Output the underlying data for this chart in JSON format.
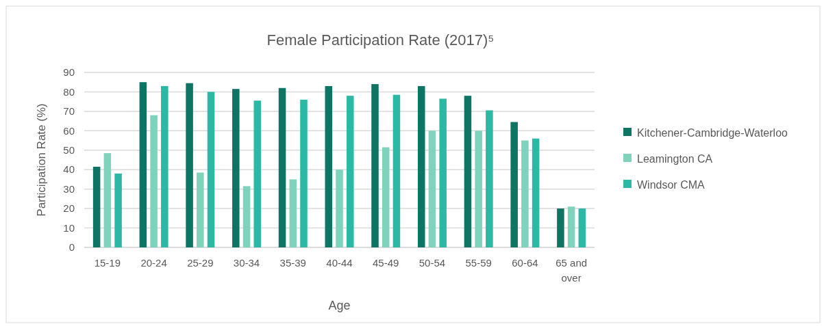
{
  "chart_data": {
    "type": "bar",
    "title": "Female Participation Rate (2017)⁵",
    "xlabel": "Age",
    "ylabel": "Participation Rate (%)",
    "categories": [
      "15-19",
      "20-24",
      "25-29",
      "30-34",
      "35-39",
      "40-44",
      "45-49",
      "50-54",
      "55-59",
      "60-64",
      "65 and over"
    ],
    "series": [
      {
        "name": "Kitchener-Cambridge-Waterloo",
        "color": "#0e7463",
        "values": [
          41.5,
          85,
          84.5,
          81.5,
          82,
          83,
          84,
          83,
          78,
          64.5,
          20
        ]
      },
      {
        "name": "Leamington CA",
        "color": "#7fd3bc",
        "values": [
          48.5,
          68,
          38.5,
          31.5,
          35,
          40,
          51.5,
          60,
          60,
          55,
          21
        ]
      },
      {
        "name": "Windsor CMA",
        "color": "#2bb8a4",
        "values": [
          38,
          83,
          80,
          75.5,
          76,
          78,
          78.5,
          76.5,
          70.5,
          56,
          20
        ]
      }
    ],
    "ylim": [
      0,
      90
    ],
    "yticks": [
      0,
      10,
      20,
      30,
      40,
      50,
      60,
      70,
      80,
      90
    ],
    "grid": "y",
    "legend": "right"
  }
}
